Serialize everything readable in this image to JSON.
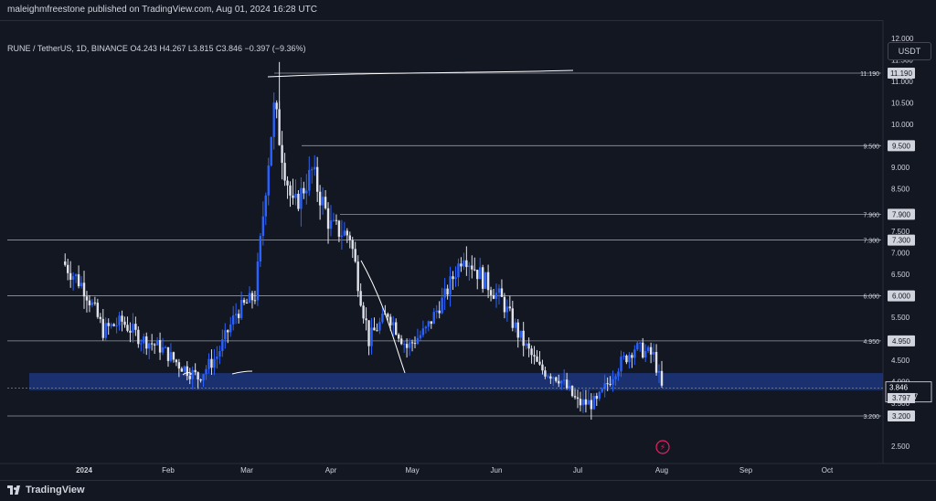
{
  "header": {
    "publisher_text": "maleighmfreestone published on TradingView.com, Aug 01, 2024 16:28 UTC"
  },
  "legend": {
    "text": "RUNE / TetherUS, 1D, BINANCE  O4.243  H4.267  L3.815  C3.846  −0.397 (−9.36%)"
  },
  "currency_button": "USDT",
  "footer": {
    "brand": "TradingView"
  },
  "colors": {
    "background": "#131722",
    "up": "#2962ff",
    "down": "#e0e3eb",
    "zone": "#1e3a8a",
    "line": "#787b86",
    "label_bg": "#d1d4dc"
  },
  "chart_data": {
    "type": "candlestick",
    "symbol": "RUNE / TetherUS",
    "interval": "1D",
    "exchange": "BINANCE",
    "ohlc_last": {
      "open": 4.243,
      "high": 4.267,
      "low": 3.815,
      "close": 3.846,
      "change": -0.397,
      "change_pct": -9.36
    },
    "y_ticks": [
      "2.500",
      "3.500",
      "4.000",
      "4.500",
      "5.500",
      "6.500",
      "7.000",
      "7.500",
      "8.500",
      "9.000",
      "10.000",
      "10.500",
      "11.000",
      "11.500",
      "12.000"
    ],
    "x_ticks": [
      "2024",
      "Feb",
      "Mar",
      "Apr",
      "May",
      "Jun",
      "Jul",
      "Aug",
      "Sep",
      "Oct"
    ],
    "horizontal_levels": [
      {
        "label": "11.190",
        "value": 11.19,
        "marker": "11.190"
      },
      {
        "label": "9.500",
        "value": 9.5,
        "marker": "9.500"
      },
      {
        "label": "7.900",
        "value": 7.9,
        "marker": "7.900"
      },
      {
        "label": "7.300",
        "value": 7.3,
        "marker": "7.300"
      },
      {
        "label": "6.000",
        "value": 6.0,
        "marker": "6.000"
      },
      {
        "label": "4.950",
        "value": 4.95,
        "marker": "4.950"
      },
      {
        "label": "3.200",
        "value": 3.2,
        "marker": "3.200"
      }
    ],
    "support_zone": {
      "low": 3.8,
      "high": 4.2
    },
    "current_price": {
      "value": 3.846,
      "label": "3.846",
      "countdown": "07:31:37"
    },
    "extra_marker": {
      "value": 3.797,
      "label": "3.797"
    },
    "candles_close_path": [
      {
        "d": "2023-12-24",
        "c": 6.8
      },
      {
        "d": "2024-01-01",
        "c": 6.2
      },
      {
        "d": "2024-01-08",
        "c": 5.2
      },
      {
        "d": "2024-01-15",
        "c": 5.4
      },
      {
        "d": "2024-01-22",
        "c": 5.0
      },
      {
        "d": "2024-01-29",
        "c": 4.8
      },
      {
        "d": "2024-02-05",
        "c": 4.4
      },
      {
        "d": "2024-02-12",
        "c": 4.1
      },
      {
        "d": "2024-02-19",
        "c": 4.6
      },
      {
        "d": "2024-02-26",
        "c": 5.6
      },
      {
        "d": "2024-03-04",
        "c": 6.0
      },
      {
        "d": "2024-03-11",
        "c": 10.4
      },
      {
        "d": "2024-03-18",
        "c": 8.0
      },
      {
        "d": "2024-03-25",
        "c": 8.9
      },
      {
        "d": "2024-04-01",
        "c": 7.6
      },
      {
        "d": "2024-04-08",
        "c": 7.4
      },
      {
        "d": "2024-04-15",
        "c": 5.0
      },
      {
        "d": "2024-04-22",
        "c": 5.6
      },
      {
        "d": "2024-04-29",
        "c": 4.8
      },
      {
        "d": "2024-05-06",
        "c": 5.2
      },
      {
        "d": "2024-05-13",
        "c": 6.0
      },
      {
        "d": "2024-05-20",
        "c": 7.0
      },
      {
        "d": "2024-05-27",
        "c": 6.4
      },
      {
        "d": "2024-06-03",
        "c": 5.9
      },
      {
        "d": "2024-06-10",
        "c": 5.0
      },
      {
        "d": "2024-06-17",
        "c": 4.3
      },
      {
        "d": "2024-06-24",
        "c": 4.1
      },
      {
        "d": "2024-07-01",
        "c": 3.5
      },
      {
        "d": "2024-07-08",
        "c": 3.5
      },
      {
        "d": "2024-07-15",
        "c": 4.3
      },
      {
        "d": "2024-07-22",
        "c": 4.8
      },
      {
        "d": "2024-07-29",
        "c": 4.6
      },
      {
        "d": "2024-08-01",
        "c": 3.846
      }
    ]
  }
}
